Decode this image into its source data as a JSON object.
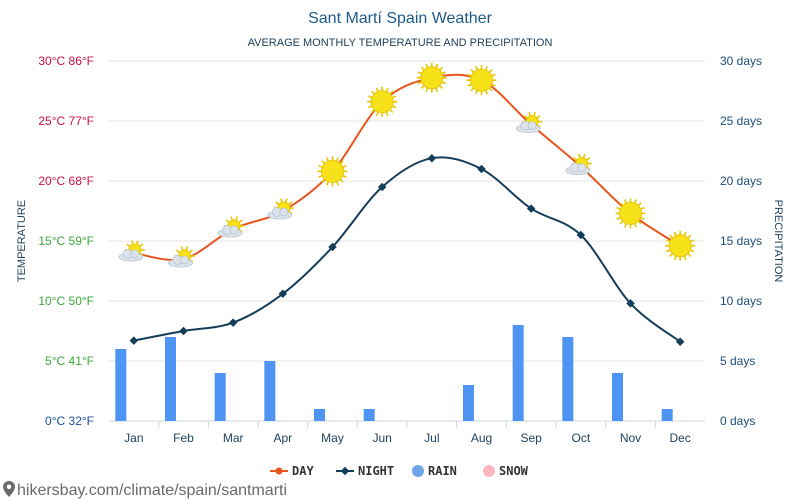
{
  "chart_data": {
    "type": "line",
    "title": "Sant Martí Spain Weather",
    "subtitle": "AVERAGE MONTHLY TEMPERATURE AND PRECIPITATION",
    "ylabel_left": "TEMPERATURE",
    "ylabel_right": "PRECIPITATION",
    "categories": [
      "Jan",
      "Feb",
      "Mar",
      "Apr",
      "May",
      "Jun",
      "Jul",
      "Aug",
      "Sep",
      "Oct",
      "Nov",
      "Dec"
    ],
    "y_left_ticks": [
      {
        "value": 0,
        "label": "0°C 32°F",
        "color": "#1a4fa0"
      },
      {
        "value": 5,
        "label": "5°C 41°F",
        "color": "#3aa83a"
      },
      {
        "value": 10,
        "label": "10°C 50°F",
        "color": "#3aa83a"
      },
      {
        "value": 15,
        "label": "15°C 59°F",
        "color": "#3aa83a"
      },
      {
        "value": 20,
        "label": "20°C 68°F",
        "color": "#cc1144"
      },
      {
        "value": 25,
        "label": "25°C 77°F",
        "color": "#cc1144"
      },
      {
        "value": 30,
        "label": "30°C 86°F",
        "color": "#cc1144"
      }
    ],
    "y_right_ticks": [
      {
        "value": 0,
        "label": "0 days"
      },
      {
        "value": 5,
        "label": "5 days"
      },
      {
        "value": 10,
        "label": "10 days"
      },
      {
        "value": 15,
        "label": "15 days"
      },
      {
        "value": 20,
        "label": "20 days"
      },
      {
        "value": 25,
        "label": "25 days"
      },
      {
        "value": 30,
        "label": "30 days"
      }
    ],
    "ylim_left": [
      0,
      30
    ],
    "ylim_right": [
      0,
      30
    ],
    "series": [
      {
        "name": "DAY",
        "type": "line",
        "color": "#e8541c",
        "axis": "left",
        "values": [
          14,
          13.5,
          16,
          17.5,
          20.8,
          26.6,
          28.6,
          28.4,
          24.7,
          21.2,
          17.3,
          14.6
        ]
      },
      {
        "name": "NIGHT",
        "type": "line",
        "color": "#143d59",
        "axis": "left",
        "values": [
          6.7,
          7.5,
          8.2,
          10.6,
          14.5,
          19.5,
          21.9,
          21,
          17.7,
          15.5,
          9.8,
          6.6
        ]
      },
      {
        "name": "RAIN",
        "type": "bar",
        "color": "#4d94f5",
        "axis": "right",
        "values": [
          6,
          7,
          4,
          5,
          1,
          1,
          0,
          3,
          8,
          7,
          4,
          1
        ]
      },
      {
        "name": "SNOW",
        "type": "bar",
        "color": "#ffb6c1",
        "axis": "right",
        "values": [
          0,
          0,
          0,
          0,
          0,
          0,
          0,
          0,
          0,
          0,
          0,
          0
        ]
      }
    ],
    "day_icons": [
      "partly-cloudy",
      "partly-cloudy",
      "partly-cloudy",
      "partly-cloudy",
      "sunny",
      "sunny",
      "sunny",
      "sunny",
      "partly-cloudy",
      "partly-cloudy",
      "sunny",
      "sunny"
    ],
    "legend": [
      {
        "label": "DAY",
        "marker": "line-dot",
        "color": "#e8541c"
      },
      {
        "label": "NIGHT",
        "marker": "line-diamond",
        "color": "#143d59"
      },
      {
        "label": "RAIN",
        "marker": "circle",
        "color": "#6fa6e8"
      },
      {
        "label": "SNOW",
        "marker": "circle",
        "color": "#ffb6c1"
      }
    ],
    "legend_position": "bottom",
    "grid": true
  },
  "source_text": "hikersbay.com/climate/spain/santmarti",
  "colors": {
    "grid": "#e6e6e6",
    "right_axis": "#1d4e7a",
    "sun": "#f7e21a",
    "sun_stroke": "#e8c400",
    "cloud": "#dde3ea"
  }
}
